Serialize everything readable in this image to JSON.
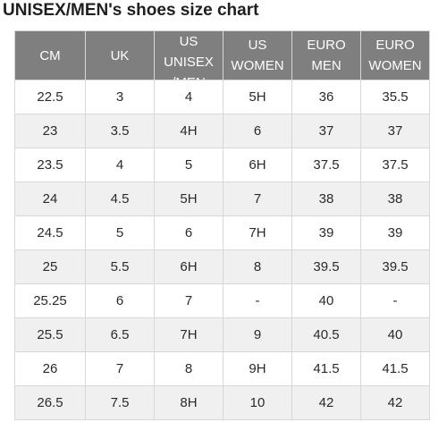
{
  "title": "UNISEX/MEN's shoes size chart",
  "table": {
    "headers": [
      "CM",
      "UK",
      "US\nUNISEX\n/MEN",
      "US\nWOMEN",
      "EURO\nMEN",
      "EURO\nWOMEN"
    ],
    "rows": [
      [
        "22.5",
        "3",
        "4",
        "5H",
        "36",
        "35.5"
      ],
      [
        "23",
        "3.5",
        "4H",
        "6",
        "37",
        "37"
      ],
      [
        "23.5",
        "4",
        "5",
        "6H",
        "37.5",
        "37.5"
      ],
      [
        "24",
        "4.5",
        "5H",
        "7",
        "38",
        "38"
      ],
      [
        "24.5",
        "5",
        "6",
        "7H",
        "39",
        "39"
      ],
      [
        "25",
        "5.5",
        "6H",
        "8",
        "39.5",
        "39.5"
      ],
      [
        "25.25",
        "6",
        "7",
        "-",
        "40",
        "-"
      ],
      [
        "25.5",
        "6.5",
        "7H",
        "9",
        "40.5",
        "40"
      ],
      [
        "26",
        "7",
        "8",
        "9H",
        "41.5",
        "41.5"
      ],
      [
        "26.5",
        "7.5",
        "8H",
        "10",
        "42",
        "42"
      ]
    ]
  },
  "colors": {
    "header_bg": "#7f7f7f",
    "header_text": "#ffffff",
    "row_alt_bg": "#f0f0f0",
    "grid": "#d8d8d8"
  }
}
